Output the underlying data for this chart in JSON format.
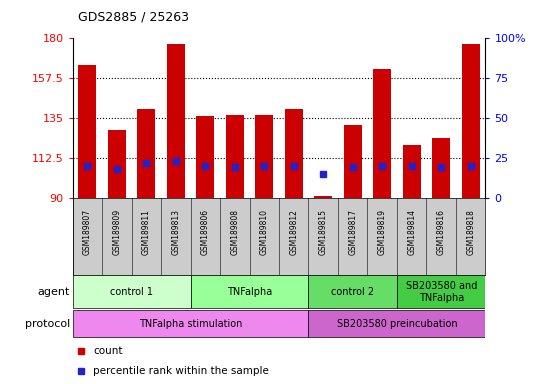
{
  "title": "GDS2885 / 25263",
  "samples": [
    "GSM189807",
    "GSM189809",
    "GSM189811",
    "GSM189813",
    "GSM189806",
    "GSM189808",
    "GSM189810",
    "GSM189812",
    "GSM189815",
    "GSM189817",
    "GSM189819",
    "GSM189814",
    "GSM189816",
    "GSM189818"
  ],
  "count_values": [
    165,
    128,
    140,
    177,
    136,
    137,
    137,
    140,
    91,
    131,
    163,
    120,
    124,
    177
  ],
  "percentile_values": [
    20,
    18,
    22,
    23,
    20,
    19,
    20,
    20,
    15,
    19,
    20,
    20,
    19,
    20
  ],
  "ymin": 90,
  "ymax": 180,
  "yticks": [
    90,
    112.5,
    135,
    157.5,
    180
  ],
  "ytick_labels": [
    "90",
    "112.5",
    "135",
    "157.5",
    "180"
  ],
  "right_ytick_pcts": [
    0,
    25,
    50,
    75,
    100
  ],
  "right_ytick_labels": [
    "0",
    "25",
    "50",
    "75",
    "100%"
  ],
  "bar_color": "#cc0000",
  "dot_color": "#2222cc",
  "gridline_yticks": [
    112.5,
    135,
    157.5
  ],
  "agent_groups": [
    {
      "label": "control 1",
      "start": 0,
      "end": 4,
      "color": "#ccffcc"
    },
    {
      "label": "TNFalpha",
      "start": 4,
      "end": 8,
      "color": "#99ff99"
    },
    {
      "label": "control 2",
      "start": 8,
      "end": 11,
      "color": "#66dd66"
    },
    {
      "label": "SB203580 and\nTNFalpha",
      "start": 11,
      "end": 14,
      "color": "#44cc44"
    }
  ],
  "protocol_groups": [
    {
      "label": "TNFalpha stimulation",
      "start": 0,
      "end": 8,
      "color": "#ee88ee"
    },
    {
      "label": "SB203580 preincubation",
      "start": 8,
      "end": 14,
      "color": "#cc66cc"
    }
  ],
  "legend_items": [
    {
      "label": "count",
      "color": "#cc0000",
      "marker": "s"
    },
    {
      "label": "percentile rank within the sample",
      "color": "#2222cc",
      "marker": "s"
    }
  ],
  "label_fontsize": 7,
  "agent_arrow_label": "agent",
  "protocol_arrow_label": "protocol"
}
